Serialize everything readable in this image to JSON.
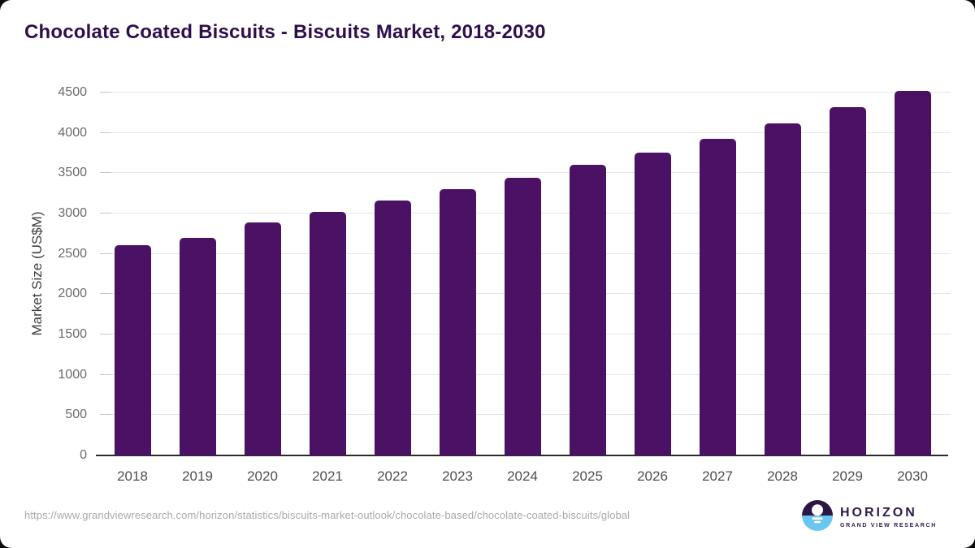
{
  "page": {
    "title": "Chocolate Coated Biscuits - Biscuits Market, 2018-2030",
    "source_url": "https://www.grandviewresearch.com/horizon/statistics/biscuits-market-outlook/chocolate-based/chocolate-coated-biscuits/global"
  },
  "logo": {
    "name": "HORIZON",
    "tagline": "GRAND VIEW RESEARCH"
  },
  "colors": {
    "bar": "#4a1164",
    "title_text": "#2f0e4e",
    "y_tick_text": "#6b6b6b",
    "x_tick_text": "#4f4f4f",
    "gridline": "#e7e7e7",
    "axis_line": "#2b2b2b",
    "url_text": "#a9a9a9",
    "logo_dark_half": "#2b1747",
    "logo_blue_half": "#69c6f1",
    "logo_text": "#2f1a4d"
  },
  "chart_data": {
    "type": "bar",
    "title": "Chocolate Coated Biscuits - Biscuits Market, 2018-2030",
    "categories": [
      "2018",
      "2019",
      "2020",
      "2021",
      "2022",
      "2023",
      "2024",
      "2025",
      "2026",
      "2027",
      "2028",
      "2029",
      "2030"
    ],
    "values": [
      2610,
      2700,
      2890,
      3020,
      3160,
      3300,
      3440,
      3600,
      3760,
      3930,
      4120,
      4320,
      4520
    ],
    "xlabel": "",
    "ylabel": "Market Size (US$M)",
    "ylim": [
      0,
      4500
    ],
    "ytick_step": 500,
    "yticks": [
      0,
      500,
      1000,
      1500,
      2000,
      2500,
      3000,
      3500,
      4000,
      4500
    ],
    "grid": true,
    "legend": false,
    "bar_color": "#4a1164"
  }
}
